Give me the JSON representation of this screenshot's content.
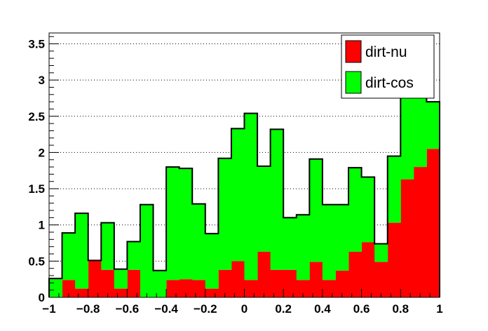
{
  "chart_data": {
    "type": "bar",
    "stacked": true,
    "histogram": true,
    "title": "",
    "xlabel": "",
    "ylabel": "",
    "xlim": [
      -1,
      1
    ],
    "ylim": [
      0,
      3.65
    ],
    "bin_edges": [
      -1.0,
      -0.9333,
      -0.8667,
      -0.8,
      -0.7333,
      -0.6667,
      -0.6,
      -0.5333,
      -0.4667,
      -0.4,
      -0.3333,
      -0.2667,
      -0.2,
      -0.1333,
      -0.0667,
      0.0,
      0.0667,
      0.1333,
      0.2,
      0.2667,
      0.3333,
      0.4,
      0.4667,
      0.5333,
      0.6,
      0.6667,
      0.7333,
      0.8,
      0.8667,
      0.9333,
      1.0
    ],
    "series": [
      {
        "name": "dirt-nu",
        "color": "#ff0000",
        "values": [
          0.0,
          0.24,
          0.12,
          0.51,
          0.38,
          0.12,
          0.38,
          0.0,
          0.0,
          0.24,
          0.25,
          0.24,
          0.12,
          0.38,
          0.5,
          0.24,
          0.63,
          0.38,
          0.38,
          0.24,
          0.49,
          0.24,
          0.37,
          0.63,
          0.76,
          0.49,
          1.03,
          1.63,
          1.8,
          2.05
        ]
      },
      {
        "name": "dirt-cos",
        "color": "#00ff00",
        "values": [
          0.26,
          0.65,
          1.04,
          0.0,
          0.65,
          0.27,
          0.39,
          1.28,
          0.37,
          1.56,
          1.53,
          1.05,
          0.76,
          1.54,
          1.83,
          2.3,
          1.18,
          1.94,
          0.72,
          0.9,
          1.42,
          1.04,
          0.91,
          1.16,
          0.9,
          0.25,
          0.92,
          1.25,
          1.1,
          0.65
        ]
      }
    ],
    "x_ticks": [
      -1,
      -0.8,
      -0.6,
      -0.4,
      -0.2,
      0,
      0.2,
      0.4,
      0.6,
      0.8,
      1
    ],
    "x_tick_labels": [
      "−1",
      "−0.8",
      "−0.6",
      "−0.4",
      "−0.2",
      "0",
      "0.2",
      "0.4",
      "0.6",
      "0.8",
      "1"
    ],
    "y_ticks": [
      0,
      0.5,
      1,
      1.5,
      2,
      2.5,
      3,
      3.5
    ],
    "y_tick_labels": [
      "0",
      "0.5",
      "1",
      "1.5",
      "2",
      "2.5",
      "3",
      "3.5"
    ],
    "y_grid": true,
    "x_grid": false,
    "legend": {
      "position": "top-right",
      "entries": [
        "dirt-nu",
        "dirt-cos"
      ]
    }
  }
}
